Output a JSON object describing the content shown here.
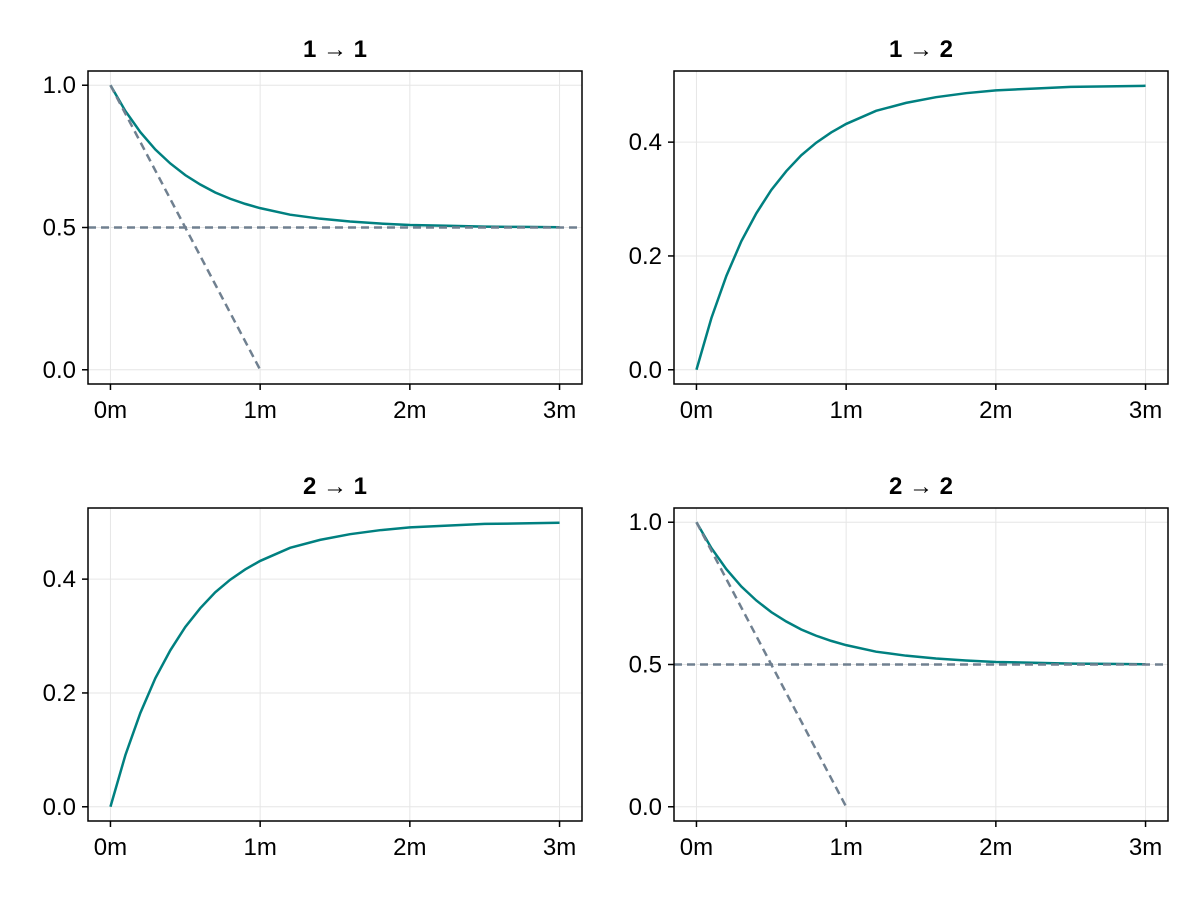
{
  "figure": {
    "background": "#ffffff",
    "line_color": "#008080",
    "guide_color": "#708090",
    "grid_color": "#e6e6e6"
  },
  "chart_data": [
    {
      "type": "line",
      "title": "1 → 1",
      "xlabel": "",
      "ylabel": "",
      "x_ticks": [
        {
          "value": 0,
          "label": "0m"
        },
        {
          "value": 1,
          "label": "1m"
        },
        {
          "value": 2,
          "label": "2m"
        },
        {
          "value": 3,
          "label": "3m"
        }
      ],
      "y_ticks": [
        {
          "value": 0,
          "label": "0.0"
        },
        {
          "value": 0.5,
          "label": "0.5"
        },
        {
          "value": 1,
          "label": "1.0"
        }
      ],
      "xlim": [
        -0.15,
        3.15
      ],
      "ylim": [
        -0.05,
        1.05
      ],
      "grid": true,
      "series": [
        {
          "style": "solid",
          "x": [
            0,
            0.1,
            0.2,
            0.3,
            0.4,
            0.5,
            0.6,
            0.7,
            0.8,
            0.9,
            1.0,
            1.2,
            1.4,
            1.6,
            1.8,
            2.0,
            2.25,
            2.5,
            2.75,
            3.0
          ],
          "y": [
            1.0,
            0.909,
            0.835,
            0.774,
            0.725,
            0.684,
            0.651,
            0.623,
            0.601,
            0.583,
            0.568,
            0.545,
            0.531,
            0.521,
            0.514,
            0.509,
            0.506,
            0.503,
            0.502,
            0.501
          ]
        },
        {
          "style": "dashed",
          "x": [
            0,
            1.0
          ],
          "y": [
            1.0,
            0.0
          ]
        },
        {
          "style": "dashed",
          "x": [
            -0.15,
            3.15
          ],
          "y": [
            0.5,
            0.5
          ]
        }
      ]
    },
    {
      "type": "line",
      "title": "1 → 2",
      "xlabel": "",
      "ylabel": "",
      "x_ticks": [
        {
          "value": 0,
          "label": "0m"
        },
        {
          "value": 1,
          "label": "1m"
        },
        {
          "value": 2,
          "label": "2m"
        },
        {
          "value": 3,
          "label": "3m"
        }
      ],
      "y_ticks": [
        {
          "value": 0,
          "label": "0.0"
        },
        {
          "value": 0.2,
          "label": "0.2"
        },
        {
          "value": 0.4,
          "label": "0.4"
        }
      ],
      "xlim": [
        -0.15,
        3.15
      ],
      "ylim": [
        -0.025,
        0.525
      ],
      "grid": true,
      "series": [
        {
          "style": "solid",
          "x": [
            0,
            0.1,
            0.2,
            0.3,
            0.4,
            0.5,
            0.6,
            0.7,
            0.8,
            0.9,
            1.0,
            1.2,
            1.4,
            1.6,
            1.8,
            2.0,
            2.25,
            2.5,
            2.75,
            3.0
          ],
          "y": [
            0.0,
            0.091,
            0.165,
            0.226,
            0.275,
            0.316,
            0.349,
            0.377,
            0.399,
            0.417,
            0.432,
            0.455,
            0.469,
            0.479,
            0.486,
            0.491,
            0.494,
            0.497,
            0.498,
            0.499
          ]
        }
      ]
    },
    {
      "type": "line",
      "title": "2 → 1",
      "xlabel": "",
      "ylabel": "",
      "x_ticks": [
        {
          "value": 0,
          "label": "0m"
        },
        {
          "value": 1,
          "label": "1m"
        },
        {
          "value": 2,
          "label": "2m"
        },
        {
          "value": 3,
          "label": "3m"
        }
      ],
      "y_ticks": [
        {
          "value": 0,
          "label": "0.0"
        },
        {
          "value": 0.2,
          "label": "0.2"
        },
        {
          "value": 0.4,
          "label": "0.4"
        }
      ],
      "xlim": [
        -0.15,
        3.15
      ],
      "ylim": [
        -0.025,
        0.525
      ],
      "grid": true,
      "series": [
        {
          "style": "solid",
          "x": [
            0,
            0.1,
            0.2,
            0.3,
            0.4,
            0.5,
            0.6,
            0.7,
            0.8,
            0.9,
            1.0,
            1.2,
            1.4,
            1.6,
            1.8,
            2.0,
            2.25,
            2.5,
            2.75,
            3.0
          ],
          "y": [
            0.0,
            0.091,
            0.165,
            0.226,
            0.275,
            0.316,
            0.349,
            0.377,
            0.399,
            0.417,
            0.432,
            0.455,
            0.469,
            0.479,
            0.486,
            0.491,
            0.494,
            0.497,
            0.498,
            0.499
          ]
        }
      ]
    },
    {
      "type": "line",
      "title": "2 → 2",
      "xlabel": "",
      "ylabel": "",
      "x_ticks": [
        {
          "value": 0,
          "label": "0m"
        },
        {
          "value": 1,
          "label": "1m"
        },
        {
          "value": 2,
          "label": "2m"
        },
        {
          "value": 3,
          "label": "3m"
        }
      ],
      "y_ticks": [
        {
          "value": 0,
          "label": "0.0"
        },
        {
          "value": 0.5,
          "label": "0.5"
        },
        {
          "value": 1,
          "label": "1.0"
        }
      ],
      "xlim": [
        -0.15,
        3.15
      ],
      "ylim": [
        -0.05,
        1.05
      ],
      "grid": true,
      "series": [
        {
          "style": "solid",
          "x": [
            0,
            0.1,
            0.2,
            0.3,
            0.4,
            0.5,
            0.6,
            0.7,
            0.8,
            0.9,
            1.0,
            1.2,
            1.4,
            1.6,
            1.8,
            2.0,
            2.25,
            2.5,
            2.75,
            3.0
          ],
          "y": [
            1.0,
            0.909,
            0.835,
            0.774,
            0.725,
            0.684,
            0.651,
            0.623,
            0.601,
            0.583,
            0.568,
            0.545,
            0.531,
            0.521,
            0.514,
            0.509,
            0.506,
            0.503,
            0.502,
            0.501
          ]
        },
        {
          "style": "dashed",
          "x": [
            0,
            1.0
          ],
          "y": [
            1.0,
            0.0
          ]
        },
        {
          "style": "dashed",
          "x": [
            -0.15,
            3.15
          ],
          "y": [
            0.5,
            0.5
          ]
        }
      ]
    }
  ]
}
